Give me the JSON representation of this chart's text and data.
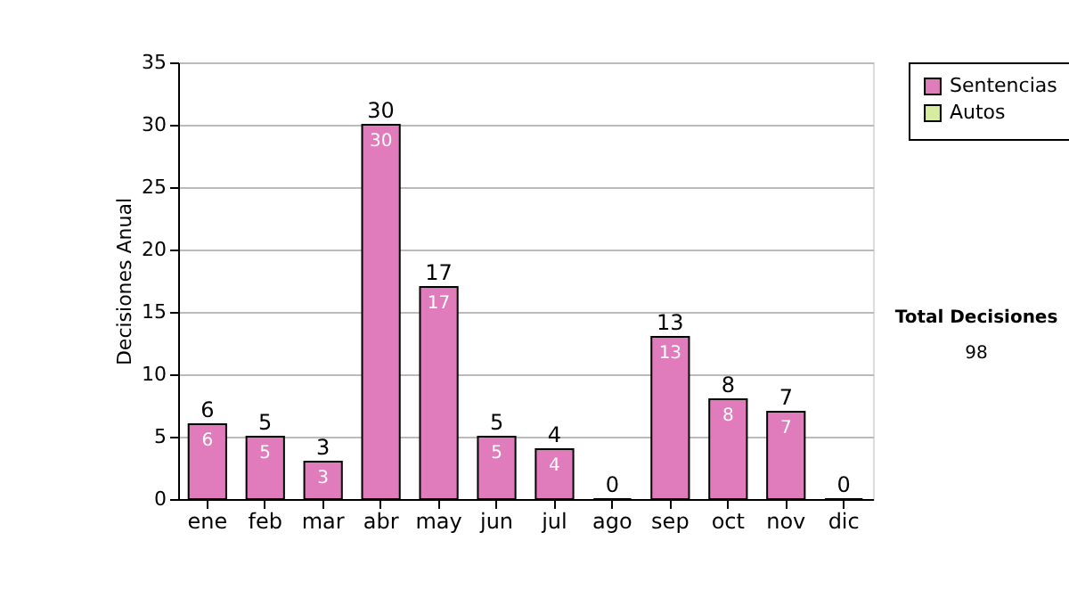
{
  "chart_data": {
    "type": "bar",
    "ylabel": "Decisiones Anual",
    "categories": [
      "ene",
      "feb",
      "mar",
      "abr",
      "may",
      "jun",
      "jul",
      "ago",
      "sep",
      "oct",
      "nov",
      "dic"
    ],
    "series": [
      {
        "name": "Sentencias",
        "color": "#e07cbc",
        "values": [
          6,
          5,
          3,
          30,
          17,
          5,
          4,
          0,
          13,
          8,
          7,
          0
        ],
        "value_labels": [
          "6",
          "5",
          "3",
          "30",
          "17",
          "5",
          "4",
          null,
          "13",
          "8",
          "7",
          null
        ]
      },
      {
        "name": "Autos",
        "color": "#d8eca0",
        "values": [
          null,
          null,
          null,
          null,
          null,
          null,
          null,
          null,
          null,
          null,
          null,
          null
        ]
      }
    ],
    "totals": [
      "6",
      "5",
      "3",
      "30",
      "17",
      "5",
      "4",
      "0",
      "13",
      "8",
      "7",
      "0"
    ],
    "ylim": [
      0,
      35
    ],
    "yticks": [
      0,
      5,
      10,
      15,
      20,
      25,
      30,
      35
    ],
    "grid": "y",
    "legend": "right",
    "annotations": [
      "Total Decisiones",
      "98"
    ]
  }
}
